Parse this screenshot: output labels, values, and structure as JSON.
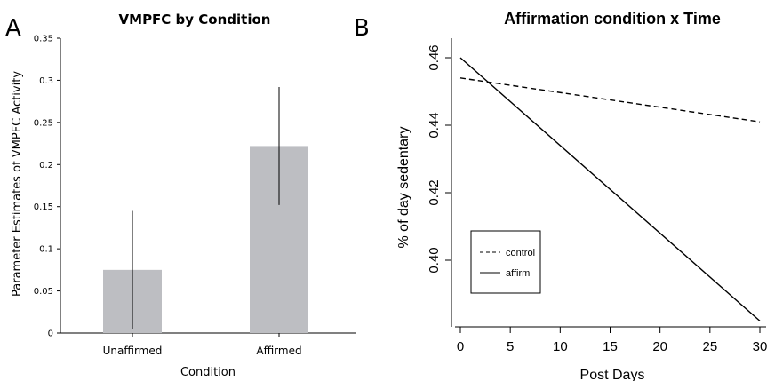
{
  "chart_data": [
    {
      "panel": "A",
      "type": "bar",
      "title": "VMPFC by Condition",
      "xlabel": "Condition",
      "ylabel": "Parameter Estimates of VMPFC Activity",
      "categories": [
        "Unaffirmed",
        "Affirmed"
      ],
      "values": [
        0.075,
        0.222
      ],
      "error_low": [
        0.005,
        0.152
      ],
      "error_high": [
        0.145,
        0.292
      ],
      "ylim": [
        0,
        0.35
      ],
      "yticks": [
        "0",
        "0.05",
        "0.1",
        "0.15",
        "0.2",
        "0.25",
        "0.3",
        "0.35"
      ],
      "bar_color": "#bdbec2",
      "grid": false
    },
    {
      "panel": "B",
      "type": "line",
      "title": "Affirmation condition x Time",
      "xlabel": "Post Days",
      "ylabel": "% of day sedentary",
      "xlim": [
        0,
        30
      ],
      "xticks": [
        "0",
        "5",
        "10",
        "15",
        "20",
        "25",
        "30"
      ],
      "yticks": [
        "0.40",
        "0.42",
        "0.44",
        "0.46"
      ],
      "series": [
        {
          "name": "control",
          "style": "dashed",
          "x": [
            0,
            30
          ],
          "y": [
            0.454,
            0.441
          ]
        },
        {
          "name": "affirm",
          "style": "solid",
          "x": [
            0,
            30
          ],
          "y": [
            0.46,
            0.382
          ]
        }
      ],
      "legend_position": "bottom-left",
      "grid": false
    }
  ]
}
